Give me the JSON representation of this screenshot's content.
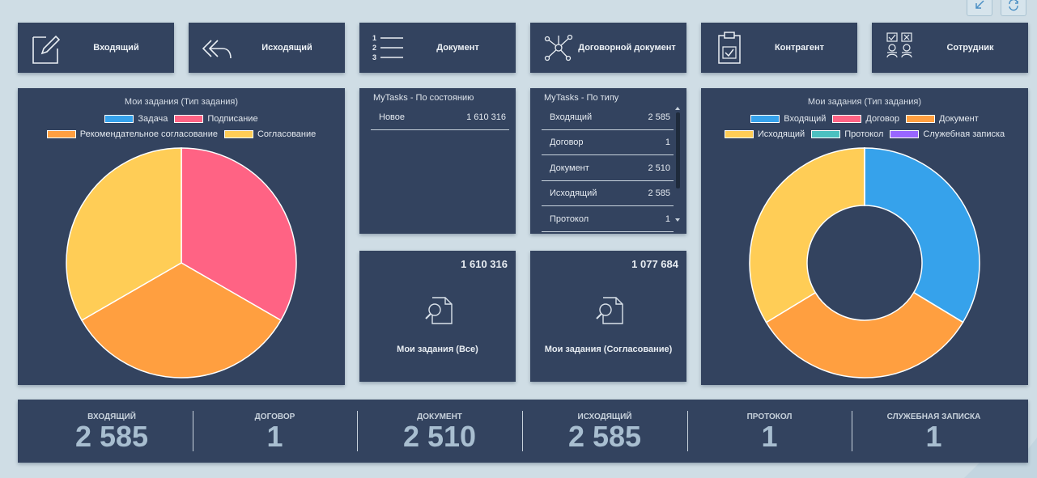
{
  "nav": [
    {
      "label": "Входящий",
      "icon": "edit-icon"
    },
    {
      "label": "Исходящий",
      "icon": "reply-all-icon"
    },
    {
      "label": "Документ",
      "icon": "numbered-list-icon"
    },
    {
      "label": "Договорной документ",
      "icon": "network-icon"
    },
    {
      "label": "Контрагент",
      "icon": "clipboard-check-icon"
    },
    {
      "label": "Сотрудник",
      "icon": "employees-icon"
    }
  ],
  "toolbar": {
    "collapse_icon": "collapse-icon",
    "refresh_icon": "refresh-icon"
  },
  "pie_left": {
    "title": "Мои задания (Тип задания)",
    "legend": [
      {
        "label": "Задача",
        "color": "#36a2eb"
      },
      {
        "label": "Подписание",
        "color": "#ff6384"
      },
      {
        "label": "Рекомендательное согласование",
        "color": "#ff9f40"
      },
      {
        "label": "Согласование",
        "color": "#ffcd56"
      }
    ]
  },
  "by_state": {
    "title": "MyTasks - По состоянию",
    "rows": [
      {
        "label": "Новое",
        "value": "1 610 316"
      }
    ]
  },
  "by_type": {
    "title": "MyTasks - По типу",
    "rows": [
      {
        "label": "Входящий",
        "value": "2 585"
      },
      {
        "label": "Договор",
        "value": "1"
      },
      {
        "label": "Документ",
        "value": "2 510"
      },
      {
        "label": "Исходящий",
        "value": "2 585"
      },
      {
        "label": "Протокол",
        "value": "1"
      }
    ]
  },
  "kpi_all": {
    "value": "1 610 316",
    "label": "Мои задания (Все)",
    "icon": "document-search-icon"
  },
  "kpi_approval": {
    "value": "1 077 684",
    "label": "Мои задания (Согласование)",
    "icon": "document-search-icon"
  },
  "donut_right": {
    "title": "Мои задания (Тип задания)",
    "legend": [
      {
        "label": "Входящий",
        "color": "#36a2eb"
      },
      {
        "label": "Договор",
        "color": "#ff6384"
      },
      {
        "label": "Документ",
        "color": "#ff9f40"
      },
      {
        "label": "Исходящий",
        "color": "#ffcd56"
      },
      {
        "label": "Протокол",
        "color": "#4bc0c0"
      },
      {
        "label": "Служебная записка",
        "color": "#9966ff"
      }
    ]
  },
  "stats": [
    {
      "label": "ВХОДЯЩИЙ",
      "value": "2 585"
    },
    {
      "label": "ДОГОВОР",
      "value": "1"
    },
    {
      "label": "ДОКУМЕНТ",
      "value": "2 510"
    },
    {
      "label": "ИСХОДЯЩИЙ",
      "value": "2 585"
    },
    {
      "label": "ПРОТОКОЛ",
      "value": "1"
    },
    {
      "label": "СЛУЖЕБНАЯ ЗАПИСКА",
      "value": "1"
    }
  ],
  "chart_data": [
    {
      "type": "pie",
      "title": "Мои задания (Тип задания)",
      "categories": [
        "Задача",
        "Подписание",
        "Рекомендательное согласование",
        "Согласование"
      ],
      "values": [
        0,
        1,
        1,
        1
      ]
    },
    {
      "type": "pie",
      "title": "Мои задания (Тип задания)",
      "categories": [
        "Входящий",
        "Договор",
        "Документ",
        "Исходящий",
        "Протокол",
        "Служебная записка"
      ],
      "values": [
        2585,
        1,
        2510,
        2585,
        1,
        1
      ]
    }
  ]
}
